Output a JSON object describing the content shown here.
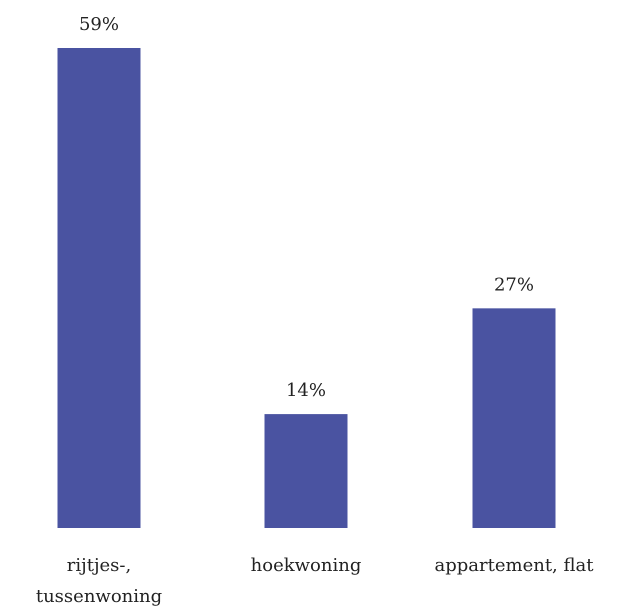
{
  "chart_data": {
    "type": "bar",
    "categories": [
      "rijtjes-, tussenwoning",
      "hoekwoning",
      "appartement, flat"
    ],
    "category_lines": [
      [
        "rijtjes-,",
        "tussenwoning"
      ],
      [
        "hoekwoning"
      ],
      [
        "appartement, flat"
      ]
    ],
    "values": [
      59,
      14,
      27
    ],
    "data_labels": [
      "59%",
      "14%",
      "27%"
    ],
    "ylim": [
      0,
      59
    ],
    "grid": false,
    "bar_color": "#4a53a1"
  }
}
